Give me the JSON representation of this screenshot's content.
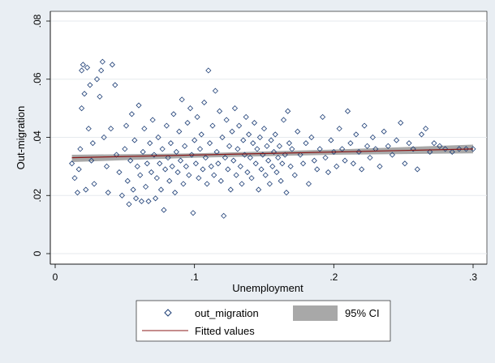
{
  "chart_data": {
    "type": "scatter",
    "xlabel": "Unemployment",
    "ylabel": "Out-migration",
    "xlim": [
      0,
      0.3
    ],
    "ylim": [
      0,
      0.08
    ],
    "x_ticks": [
      {
        "value": 0,
        "label": "0"
      },
      {
        "value": 0.1,
        "label": ".1"
      },
      {
        "value": 0.2,
        "label": ".2"
      },
      {
        "value": 0.3,
        "label": ".3"
      }
    ],
    "y_ticks": [
      {
        "value": 0,
        "label": "0"
      },
      {
        "value": 0.02,
        "label": ".02"
      },
      {
        "value": 0.04,
        "label": ".04"
      },
      {
        "value": 0.06,
        "label": ".06"
      },
      {
        "value": 0.08,
        "label": ".08"
      }
    ],
    "grid": "horizontal",
    "legend_position": "bottom",
    "series": [
      {
        "name": "out_migration",
        "marker": "hollow-diamond",
        "color": "#1c3d75",
        "points": [
          [
            0.012,
            0.031
          ],
          [
            0.014,
            0.026
          ],
          [
            0.016,
            0.021
          ],
          [
            0.017,
            0.029
          ],
          [
            0.018,
            0.036
          ],
          [
            0.019,
            0.05
          ],
          [
            0.019,
            0.063
          ],
          [
            0.02,
            0.065
          ],
          [
            0.021,
            0.055
          ],
          [
            0.022,
            0.022
          ],
          [
            0.023,
            0.064
          ],
          [
            0.024,
            0.043
          ],
          [
            0.025,
            0.058
          ],
          [
            0.026,
            0.032
          ],
          [
            0.027,
            0.038
          ],
          [
            0.028,
            0.024
          ],
          [
            0.03,
            0.06
          ],
          [
            0.032,
            0.054
          ],
          [
            0.033,
            0.063
          ],
          [
            0.034,
            0.066
          ],
          [
            0.035,
            0.04
          ],
          [
            0.037,
            0.03
          ],
          [
            0.038,
            0.021
          ],
          [
            0.04,
            0.043
          ],
          [
            0.041,
            0.065
          ],
          [
            0.043,
            0.058
          ],
          [
            0.044,
            0.034
          ],
          [
            0.046,
            0.028
          ],
          [
            0.048,
            0.02
          ],
          [
            0.05,
            0.036
          ],
          [
            0.051,
            0.044
          ],
          [
            0.052,
            0.025
          ],
          [
            0.053,
            0.017
          ],
          [
            0.054,
            0.032
          ],
          [
            0.055,
            0.048
          ],
          [
            0.056,
            0.022
          ],
          [
            0.057,
            0.039
          ],
          [
            0.058,
            0.019
          ],
          [
            0.059,
            0.03
          ],
          [
            0.06,
            0.051
          ],
          [
            0.061,
            0.027
          ],
          [
            0.062,
            0.018
          ],
          [
            0.063,
            0.035
          ],
          [
            0.064,
            0.043
          ],
          [
            0.065,
            0.023
          ],
          [
            0.066,
            0.031
          ],
          [
            0.067,
            0.018
          ],
          [
            0.068,
            0.038
          ],
          [
            0.069,
            0.028
          ],
          [
            0.07,
            0.046
          ],
          [
            0.071,
            0.034
          ],
          [
            0.072,
            0.019
          ],
          [
            0.073,
            0.026
          ],
          [
            0.074,
            0.04
          ],
          [
            0.075,
            0.031
          ],
          [
            0.076,
            0.022
          ],
          [
            0.077,
            0.036
          ],
          [
            0.078,
            0.015
          ],
          [
            0.079,
            0.029
          ],
          [
            0.08,
            0.044
          ],
          [
            0.081,
            0.033
          ],
          [
            0.082,
            0.025
          ],
          [
            0.083,
            0.038
          ],
          [
            0.084,
            0.03
          ],
          [
            0.085,
            0.048
          ],
          [
            0.086,
            0.021
          ],
          [
            0.087,
            0.035
          ],
          [
            0.088,
            0.028
          ],
          [
            0.089,
            0.042
          ],
          [
            0.09,
            0.032
          ],
          [
            0.091,
            0.053
          ],
          [
            0.092,
            0.024
          ],
          [
            0.093,
            0.037
          ],
          [
            0.094,
            0.03
          ],
          [
            0.095,
            0.045
          ],
          [
            0.096,
            0.027
          ],
          [
            0.097,
            0.05
          ],
          [
            0.098,
            0.034
          ],
          [
            0.099,
            0.014
          ],
          [
            0.1,
            0.039
          ],
          [
            0.101,
            0.031
          ],
          [
            0.102,
            0.047
          ],
          [
            0.103,
            0.026
          ],
          [
            0.104,
            0.036
          ],
          [
            0.105,
            0.041
          ],
          [
            0.106,
            0.029
          ],
          [
            0.107,
            0.052
          ],
          [
            0.108,
            0.033
          ],
          [
            0.109,
            0.024
          ],
          [
            0.11,
            0.063
          ],
          [
            0.111,
            0.038
          ],
          [
            0.112,
            0.03
          ],
          [
            0.113,
            0.044
          ],
          [
            0.114,
            0.027
          ],
          [
            0.115,
            0.056
          ],
          [
            0.116,
            0.035
          ],
          [
            0.117,
            0.031
          ],
          [
            0.118,
            0.049
          ],
          [
            0.119,
            0.025
          ],
          [
            0.12,
            0.04
          ],
          [
            0.121,
            0.013
          ],
          [
            0.122,
            0.033
          ],
          [
            0.123,
            0.046
          ],
          [
            0.124,
            0.029
          ],
          [
            0.125,
            0.037
          ],
          [
            0.126,
            0.022
          ],
          [
            0.127,
            0.042
          ],
          [
            0.128,
            0.032
          ],
          [
            0.129,
            0.05
          ],
          [
            0.13,
            0.027
          ],
          [
            0.131,
            0.036
          ],
          [
            0.132,
            0.044
          ],
          [
            0.133,
            0.03
          ],
          [
            0.134,
            0.024
          ],
          [
            0.135,
            0.039
          ],
          [
            0.136,
            0.034
          ],
          [
            0.137,
            0.047
          ],
          [
            0.138,
            0.028
          ],
          [
            0.139,
            0.041
          ],
          [
            0.14,
            0.033
          ],
          [
            0.141,
            0.026
          ],
          [
            0.142,
            0.038
          ],
          [
            0.143,
            0.045
          ],
          [
            0.144,
            0.031
          ],
          [
            0.145,
            0.036
          ],
          [
            0.146,
            0.022
          ],
          [
            0.147,
            0.04
          ],
          [
            0.148,
            0.029
          ],
          [
            0.149,
            0.034
          ],
          [
            0.15,
            0.043
          ],
          [
            0.151,
            0.027
          ],
          [
            0.152,
            0.037
          ],
          [
            0.153,
            0.032
          ],
          [
            0.154,
            0.024
          ],
          [
            0.155,
            0.039
          ],
          [
            0.156,
            0.03
          ],
          [
            0.157,
            0.035
          ],
          [
            0.158,
            0.041
          ],
          [
            0.159,
            0.028
          ],
          [
            0.16,
            0.033
          ],
          [
            0.161,
            0.037
          ],
          [
            0.162,
            0.025
          ],
          [
            0.163,
            0.031
          ],
          [
            0.164,
            0.046
          ],
          [
            0.165,
            0.034
          ],
          [
            0.166,
            0.021
          ],
          [
            0.167,
            0.049
          ],
          [
            0.168,
            0.038
          ],
          [
            0.169,
            0.03
          ],
          [
            0.17,
            0.036
          ],
          [
            0.172,
            0.027
          ],
          [
            0.174,
            0.042
          ],
          [
            0.176,
            0.034
          ],
          [
            0.178,
            0.031
          ],
          [
            0.18,
            0.038
          ],
          [
            0.182,
            0.024
          ],
          [
            0.184,
            0.04
          ],
          [
            0.186,
            0.032
          ],
          [
            0.188,
            0.029
          ],
          [
            0.19,
            0.036
          ],
          [
            0.192,
            0.047
          ],
          [
            0.194,
            0.033
          ],
          [
            0.196,
            0.028
          ],
          [
            0.198,
            0.039
          ],
          [
            0.2,
            0.035
          ],
          [
            0.202,
            0.03
          ],
          [
            0.204,
            0.043
          ],
          [
            0.206,
            0.036
          ],
          [
            0.208,
            0.032
          ],
          [
            0.21,
            0.049
          ],
          [
            0.212,
            0.038
          ],
          [
            0.214,
            0.031
          ],
          [
            0.216,
            0.041
          ],
          [
            0.218,
            0.035
          ],
          [
            0.22,
            0.029
          ],
          [
            0.222,
            0.044
          ],
          [
            0.224,
            0.037
          ],
          [
            0.226,
            0.033
          ],
          [
            0.228,
            0.04
          ],
          [
            0.23,
            0.036
          ],
          [
            0.233,
            0.03
          ],
          [
            0.236,
            0.042
          ],
          [
            0.239,
            0.037
          ],
          [
            0.242,
            0.034
          ],
          [
            0.245,
            0.039
          ],
          [
            0.248,
            0.045
          ],
          [
            0.251,
            0.031
          ],
          [
            0.254,
            0.038
          ],
          [
            0.257,
            0.036
          ],
          [
            0.26,
            0.029
          ],
          [
            0.263,
            0.041
          ],
          [
            0.266,
            0.043
          ],
          [
            0.269,
            0.035
          ],
          [
            0.272,
            0.038
          ],
          [
            0.276,
            0.037
          ],
          [
            0.28,
            0.036
          ],
          [
            0.285,
            0.035
          ],
          [
            0.29,
            0.036
          ],
          [
            0.295,
            0.036
          ],
          [
            0.3,
            0.036
          ]
        ]
      },
      {
        "name": "95% CI",
        "type": "area",
        "color": "#a8a8a8",
        "x": [
          0.012,
          0.1,
          0.2,
          0.3
        ],
        "lower": [
          0.0315,
          0.033,
          0.034,
          0.0345
        ],
        "upper": [
          0.034,
          0.0345,
          0.0358,
          0.0375
        ]
      },
      {
        "name": "Fitted values",
        "type": "line",
        "color": "#8b1a1a",
        "x": [
          0.012,
          0.3
        ],
        "y": [
          0.033,
          0.036
        ]
      }
    ]
  }
}
